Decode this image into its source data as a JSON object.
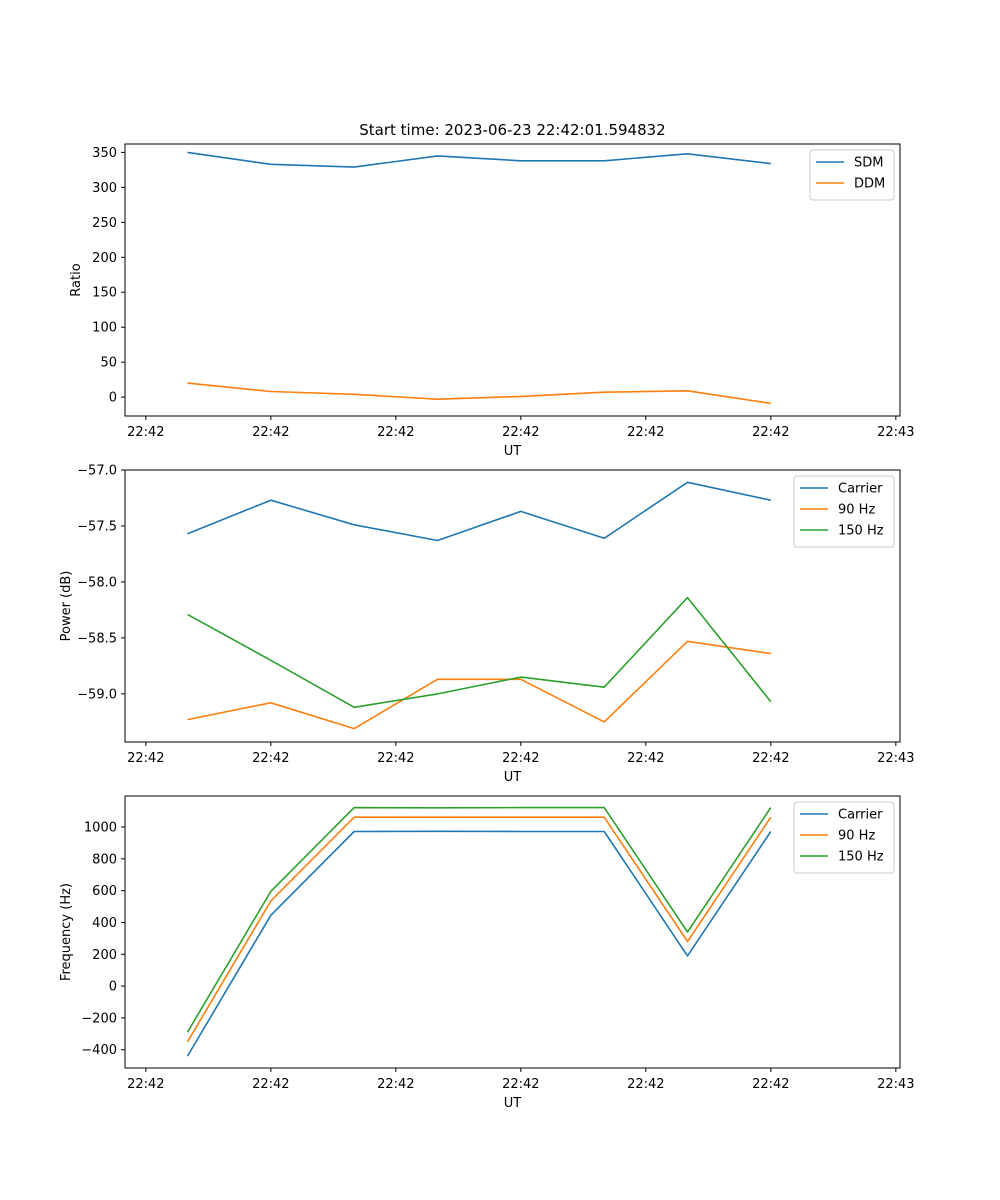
{
  "figure_title": "Start time: 2023-06-23 22:42:01.594832",
  "x_tick_labels": [
    "22:42",
    "22:42",
    "22:42",
    "22:42",
    "22:42",
    "22:42",
    "22:43"
  ],
  "chart_data": [
    {
      "type": "line",
      "title": "Start time: 2023-06-23 22:42:01.594832",
      "xlabel": "UT",
      "ylabel": "Ratio",
      "x": [
        1,
        2,
        3,
        4,
        5,
        6,
        7,
        8
      ],
      "xlim": [
        0.25,
        9.55
      ],
      "ylim": [
        -27,
        362
      ],
      "yticks": [
        0,
        50,
        100,
        150,
        200,
        250,
        300,
        350
      ],
      "ytick_labels": [
        "0",
        "50",
        "100",
        "150",
        "200",
        "250",
        "300",
        "350"
      ],
      "legend_position": "top-right",
      "grid": false,
      "series": [
        {
          "name": "SDM",
          "color": "#1f77b4",
          "values": [
            350,
            333,
            329,
            345,
            338,
            338,
            348,
            334
          ]
        },
        {
          "name": "DDM",
          "color": "#ff7f0e",
          "values": [
            20,
            8,
            4,
            -3,
            1,
            7,
            9,
            -9
          ]
        }
      ]
    },
    {
      "type": "line",
      "title": "",
      "xlabel": "UT",
      "ylabel": "Power (dB)",
      "x": [
        1,
        2,
        3,
        4,
        5,
        6,
        7,
        8
      ],
      "xlim": [
        0.25,
        9.55
      ],
      "ylim": [
        -59.43,
        -57.0
      ],
      "yticks": [
        -59.0,
        -58.5,
        -58.0,
        -57.5,
        -57.0
      ],
      "ytick_labels": [
        "−59.0",
        "−58.5",
        "−58.0",
        "−57.5",
        "−57.0"
      ],
      "legend_position": "top-right",
      "grid": false,
      "series": [
        {
          "name": "Carrier",
          "color": "#1f77b4",
          "values": [
            -57.57,
            -57.27,
            -57.49,
            -57.63,
            -57.37,
            -57.61,
            -57.11,
            -57.27
          ]
        },
        {
          "name": "90 Hz",
          "color": "#ff7f0e",
          "values": [
            -59.23,
            -59.08,
            -59.31,
            -58.87,
            -58.87,
            -59.25,
            -58.53,
            -58.64
          ]
        },
        {
          "name": "150 Hz",
          "color": "#2ca02c",
          "values": [
            -58.29,
            -58.7,
            -59.12,
            -59.0,
            -58.85,
            -58.94,
            -58.14,
            -59.07
          ]
        }
      ]
    },
    {
      "type": "line",
      "title": "",
      "xlabel": "UT",
      "ylabel": "Frequency (Hz)",
      "x": [
        1,
        2,
        3,
        4,
        5,
        6,
        7,
        8
      ],
      "xlim": [
        0.25,
        9.55
      ],
      "ylim": [
        -515,
        1195
      ],
      "yticks": [
        -400,
        -200,
        0,
        200,
        400,
        600,
        800,
        1000
      ],
      "ytick_labels": [
        "−400",
        "−200",
        "0",
        "200",
        "400",
        "600",
        "800",
        "1000"
      ],
      "legend_position": "top-right",
      "grid": false,
      "series": [
        {
          "name": "Carrier",
          "color": "#1f77b4",
          "values": [
            -440,
            445,
            972,
            973,
            972,
            972,
            190,
            972
          ]
        },
        {
          "name": "90 Hz",
          "color": "#ff7f0e",
          "values": [
            -350,
            535,
            1062,
            1062,
            1062,
            1062,
            280,
            1062
          ]
        },
        {
          "name": "150 Hz",
          "color": "#2ca02c",
          "values": [
            -290,
            595,
            1122,
            1121,
            1122,
            1122,
            340,
            1122
          ]
        }
      ]
    }
  ]
}
